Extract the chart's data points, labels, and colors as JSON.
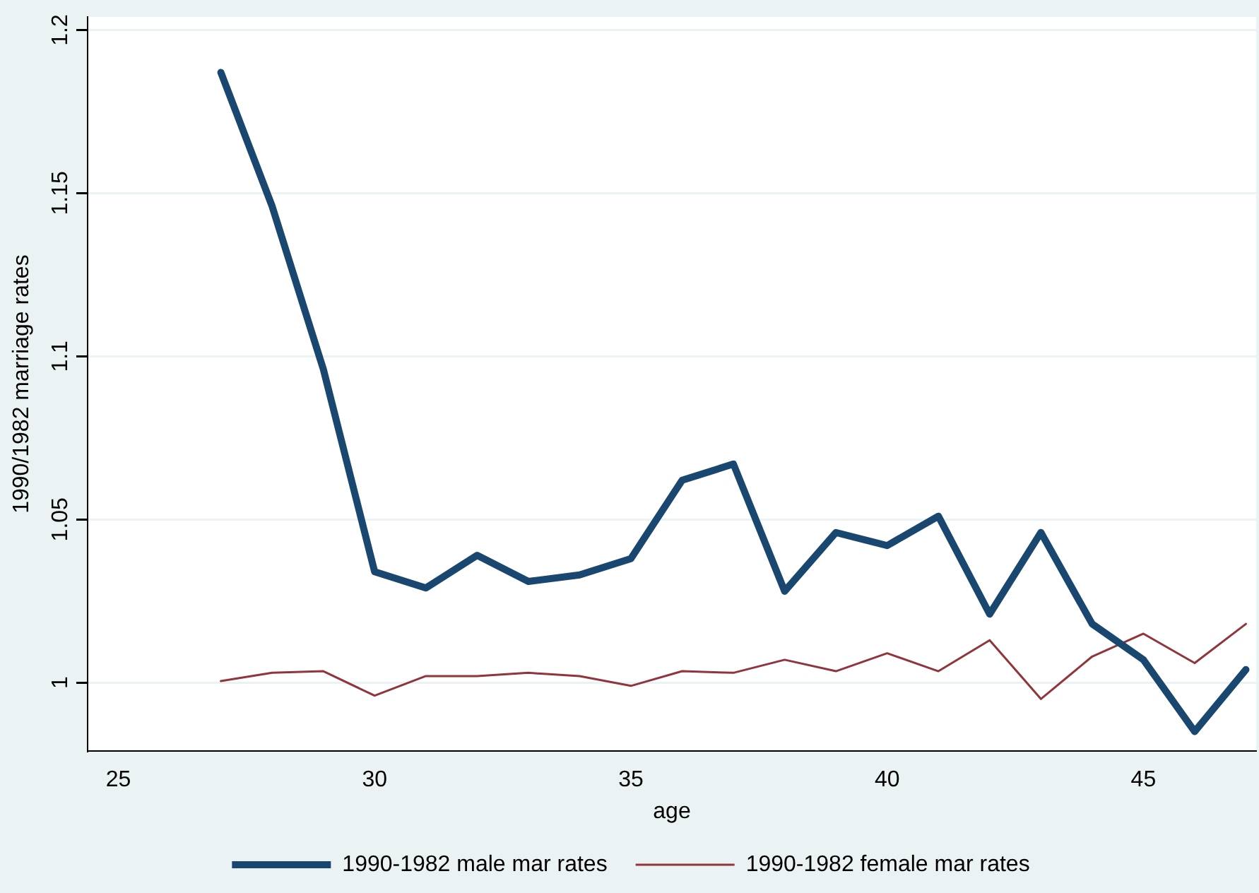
{
  "chart_data": {
    "type": "line",
    "xlabel": "age",
    "ylabel": "1990/1982 marriage rates",
    "x": [
      27,
      28,
      29,
      30,
      31,
      32,
      33,
      34,
      35,
      36,
      37,
      38,
      39,
      40,
      41,
      42,
      43,
      44,
      45,
      46,
      47
    ],
    "series": [
      {
        "name": "1990-1982 male mar rates",
        "color": "#1a476f",
        "values": [
          1.187,
          1.146,
          1.096,
          1.034,
          1.029,
          1.039,
          1.031,
          1.033,
          1.038,
          1.062,
          1.067,
          1.028,
          1.046,
          1.042,
          1.051,
          1.021,
          1.046,
          1.018,
          1.007,
          0.985,
          1.004
        ]
      },
      {
        "name": "1990-1982 female mar rates",
        "color": "#90353b",
        "values": [
          1.0005,
          1.003,
          1.0035,
          0.996,
          1.002,
          1.002,
          1.003,
          1.002,
          0.999,
          1.0035,
          1.003,
          1.007,
          1.0035,
          1.009,
          1.0035,
          1.013,
          0.995,
          1.008,
          1.015,
          1.006,
          1.018
        ]
      }
    ],
    "xlim": [
      24.4,
      47.2
    ],
    "xticks": [
      25,
      30,
      35,
      40,
      45
    ],
    "ylim": [
      0.979,
      1.204
    ],
    "yticks": [
      1,
      1.05,
      1.1,
      1.15,
      1.2
    ],
    "grid": "y",
    "legend": "bottom",
    "marker": "none",
    "line_style": "solid"
  }
}
